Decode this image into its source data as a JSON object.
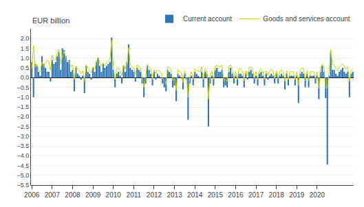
{
  "chart_data": {
    "type": "bar",
    "ylabel": "EUR billion",
    "categories": [
      "2006",
      null,
      null,
      null,
      null,
      null,
      null,
      null,
      null,
      null,
      null,
      null,
      "2007",
      null,
      null,
      null,
      null,
      null,
      null,
      null,
      null,
      null,
      null,
      null,
      "2008",
      null,
      null,
      null,
      null,
      null,
      null,
      null,
      null,
      null,
      null,
      null,
      "2009",
      null,
      null,
      null,
      null,
      null,
      null,
      null,
      null,
      null,
      null,
      null,
      "2010",
      null,
      null,
      null,
      null,
      null,
      null,
      null,
      null,
      null,
      null,
      null,
      "2011",
      null,
      null,
      null,
      null,
      null,
      null,
      null,
      null,
      null,
      null,
      null,
      "2012",
      null,
      null,
      null,
      null,
      null,
      null,
      null,
      null,
      null,
      null,
      null,
      "2013",
      null,
      null,
      null,
      null,
      null,
      null,
      null,
      null,
      null,
      null,
      null,
      "2014",
      null,
      null,
      null,
      null,
      null,
      null,
      null,
      null,
      null,
      null,
      null,
      "2015",
      null,
      null,
      null,
      null,
      null,
      null,
      null,
      null,
      null,
      null,
      null,
      "2016",
      null,
      null,
      null,
      null,
      null,
      null,
      null,
      null,
      null,
      null,
      null,
      "2017",
      null,
      null,
      null,
      null,
      null,
      null,
      null,
      null,
      null,
      null,
      null,
      "2018",
      null,
      null,
      null,
      null,
      null,
      null,
      null,
      null,
      null,
      null,
      null,
      "2019",
      null,
      null,
      null,
      null,
      null,
      null,
      null,
      null,
      null,
      null,
      null,
      "2020",
      null,
      null,
      null,
      null,
      null,
      null,
      null,
      null,
      null,
      null,
      null,
      null,
      null,
      null,
      null,
      null,
      null,
      null,
      null,
      null,
      null
    ],
    "series": [
      {
        "name": "Current account",
        "type": "bar",
        "color": "#2e75b6",
        "values": [
          0.8,
          -1.0,
          0.7,
          0.6,
          0.3,
          0.1,
          1.1,
          0.7,
          0.5,
          0.3,
          0.3,
          -0.2,
          0.9,
          0.7,
          0.8,
          1.1,
          1.3,
          0.4,
          1.5,
          1.4,
          1.1,
          0.8,
          0.9,
          0.3,
          0.4,
          -0.7,
          0.5,
          0.2,
          0.1,
          -0.1,
          0.1,
          -0.8,
          0.6,
          0.3,
          0.2,
          -0.1,
          0.5,
          0.3,
          0.8,
          1.0,
          0.6,
          0.3,
          0.7,
          0.5,
          0.6,
          0.7,
          0.8,
          2.05,
          0.4,
          -0.5,
          0.2,
          0.3,
          0.1,
          -0.3,
          0.6,
          0.3,
          0.8,
          1.7,
          0.5,
          0.4,
          0.3,
          -0.2,
          0.5,
          0.4,
          0.3,
          -0.3,
          -1.0,
          -0.3,
          0.6,
          0.4,
          0.2,
          -0.4,
          0.3,
          -0.1,
          0.2,
          0.1,
          0.0,
          -0.3,
          -0.5,
          -0.7,
          0.4,
          0.3,
          0.2,
          -0.5,
          -0.4,
          -1.2,
          0.2,
          0.1,
          0.0,
          -0.6,
          0.2,
          -0.1,
          -2.15,
          -0.3,
          0.1,
          -0.4,
          0.3,
          0.2,
          0.1,
          0.0,
          0.3,
          -0.5,
          0.3,
          0.2,
          -2.5,
          -0.3,
          0.1,
          -0.4,
          0.4,
          0.5,
          0.3,
          0.3,
          0.4,
          -0.5,
          -0.4,
          -0.5,
          0.3,
          0.5,
          0.2,
          -0.3,
          0.1,
          -0.4,
          0.2,
          0.2,
          0.1,
          -0.5,
          0.2,
          -0.1,
          0.3,
          0.4,
          0.2,
          -0.3,
          0.1,
          -0.4,
          0.2,
          0.3,
          0.1,
          -0.4,
          0.2,
          -0.1,
          0.1,
          0.2,
          0.1,
          -0.3,
          0.2,
          -0.3,
          0.1,
          0.2,
          0.1,
          -0.6,
          0.2,
          -0.4,
          0.1,
          0.1,
          0.1,
          -0.4,
          0.1,
          -1.3,
          0.2,
          0.3,
          0.2,
          -0.5,
          0.2,
          -0.5,
          0.1,
          0.1,
          0.1,
          -0.3,
          0.1,
          -1.1,
          0.3,
          0.6,
          0.3,
          -1.05,
          -4.45,
          0.1,
          1.3,
          0.4,
          0.4,
          0.2,
          0.1,
          0.3,
          0.4,
          0.5,
          0.3,
          0.2,
          0.3,
          -1.0,
          0.2,
          0.3
        ]
      },
      {
        "name": "Goods and services account",
        "type": "line",
        "color": "#c8d400",
        "values": [
          0.45,
          1.65,
          0.55,
          0.7,
          0.4,
          0.3,
          0.8,
          0.6,
          0.7,
          0.9,
          0.85,
          0.35,
          1.15,
          0.9,
          0.9,
          1.25,
          1.45,
          0.7,
          1.1,
          1.35,
          1.0,
          0.9,
          0.8,
          0.55,
          0.65,
          -0.1,
          0.6,
          0.45,
          0.35,
          0.2,
          0.35,
          -0.2,
          0.65,
          0.5,
          0.4,
          0.25,
          0.55,
          0.45,
          0.8,
          1.05,
          0.75,
          0.6,
          0.75,
          0.6,
          0.75,
          0.85,
          0.95,
          1.9,
          0.55,
          -0.1,
          0.45,
          0.5,
          0.35,
          0.1,
          0.65,
          0.45,
          0.75,
          1.55,
          0.65,
          0.55,
          0.5,
          0.15,
          0.65,
          0.6,
          0.5,
          0.0,
          -0.5,
          0.1,
          0.7,
          0.55,
          0.45,
          -0.1,
          0.4,
          0.2,
          0.4,
          0.35,
          0.25,
          -0.05,
          -0.15,
          -0.35,
          0.55,
          0.5,
          0.4,
          -0.15,
          -0.05,
          -0.65,
          0.4,
          0.35,
          0.25,
          -0.25,
          0.35,
          0.1,
          -1.0,
          0.05,
          0.3,
          -0.1,
          0.45,
          0.35,
          0.35,
          0.3,
          0.55,
          -0.1,
          0.45,
          0.35,
          -1.1,
          0.1,
          0.35,
          -0.1,
          0.55,
          0.65,
          0.55,
          0.55,
          0.65,
          -0.15,
          -0.1,
          -0.2,
          0.55,
          0.65,
          0.45,
          -0.05,
          0.3,
          -0.1,
          0.45,
          0.45,
          0.35,
          -0.15,
          0.35,
          0.1,
          0.5,
          0.55,
          0.45,
          -0.05,
          0.3,
          -0.1,
          0.4,
          0.45,
          0.35,
          -0.1,
          0.35,
          0.1,
          0.35,
          0.45,
          0.35,
          -0.05,
          0.35,
          -0.05,
          0.3,
          0.4,
          0.3,
          -0.2,
          0.35,
          -0.1,
          0.3,
          0.3,
          0.3,
          -0.1,
          0.3,
          -0.4,
          0.4,
          0.5,
          0.45,
          -0.15,
          0.35,
          -0.15,
          0.3,
          0.3,
          0.3,
          -0.05,
          0.3,
          -0.55,
          0.5,
          0.7,
          0.55,
          -0.55,
          -0.5,
          0.3,
          1.45,
          0.65,
          0.65,
          0.45,
          0.35,
          0.55,
          0.65,
          0.7,
          0.55,
          0.45,
          0.55,
          -0.2,
          0.35,
          0.45
        ]
      }
    ],
    "ylim": [
      -5.5,
      2.5
    ],
    "yticks": [
      -5.5,
      {
        "value": -5.0,
        "label": "−5.0"
      },
      -4.5,
      {
        "value": -4.0,
        "label": "−4.0"
      },
      -3.5,
      {
        "value": -3.0,
        "label": "−3.0"
      },
      -2.5,
      {
        "value": -2.0,
        "label": "−2.0"
      },
      -1.5,
      {
        "value": -1.0,
        "label": "−1.0"
      },
      -0.5,
      {
        "value": 0.0,
        "label": "0.0"
      },
      0.5,
      {
        "value": 1.0,
        "label": "1.0"
      },
      1.5,
      {
        "value": 2.0,
        "label": "2.0"
      }
    ],
    "grid": true,
    "legend": "upper right"
  }
}
